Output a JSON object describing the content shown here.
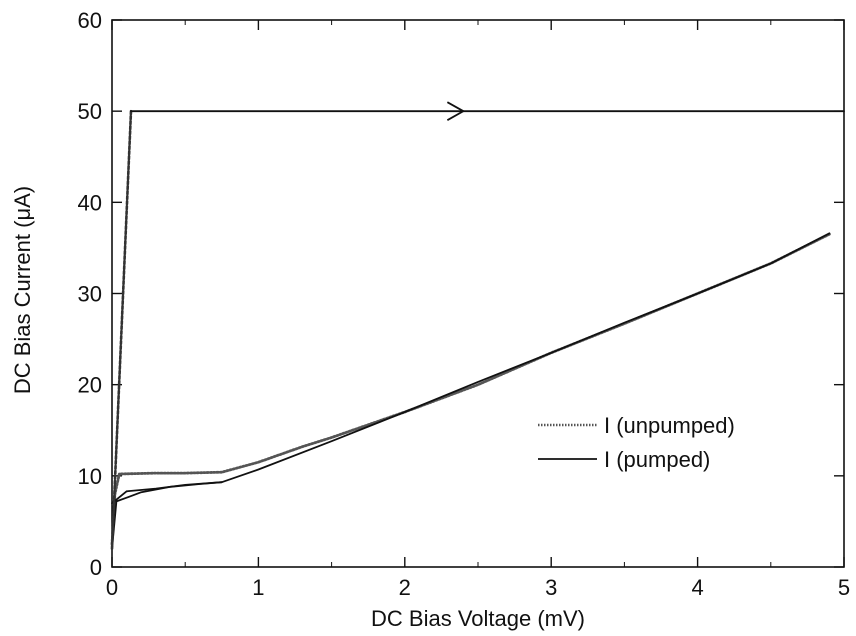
{
  "chart_data": {
    "type": "line",
    "xlabel": "DC Bias Voltage (mV)",
    "ylabel": "DC Bias Current (μA)",
    "xlim": [
      0,
      5
    ],
    "ylim": [
      0,
      60
    ],
    "x_ticks": [
      0,
      1,
      2,
      3,
      4,
      5
    ],
    "y_ticks": [
      0,
      10,
      20,
      30,
      40,
      50,
      60
    ],
    "grid": false,
    "legend_position": "right",
    "legend_entries": [
      "I  (unpumped)",
      "I  (pumped)"
    ],
    "series": [
      {
        "name": "I  (unpumped)",
        "style": "dotted",
        "points": [
          [
            0.0,
            2.5
          ],
          [
            0.02,
            8.0
          ],
          [
            0.05,
            10.2
          ],
          [
            0.3,
            10.3
          ],
          [
            0.5,
            10.3
          ],
          [
            0.75,
            10.4
          ],
          [
            1.0,
            11.5
          ],
          [
            1.3,
            13.2
          ],
          [
            1.5,
            14.2
          ],
          [
            2.0,
            17.0
          ],
          [
            2.5,
            20.0
          ],
          [
            3.0,
            23.5
          ],
          [
            3.5,
            26.7
          ],
          [
            4.0,
            30.0
          ],
          [
            4.5,
            33.3
          ],
          [
            4.9,
            36.5
          ]
        ]
      },
      {
        "name": "I  (pumped)",
        "style": "solid",
        "points": [
          [
            0.0,
            2.0
          ],
          [
            0.03,
            7.2
          ],
          [
            0.1,
            7.6
          ],
          [
            0.2,
            8.2
          ],
          [
            0.4,
            8.8
          ],
          [
            0.6,
            9.1
          ],
          [
            0.75,
            9.3
          ],
          [
            1.0,
            10.7
          ],
          [
            1.5,
            13.8
          ],
          [
            2.0,
            17.0
          ],
          [
            2.5,
            20.3
          ],
          [
            3.0,
            23.5
          ],
          [
            3.5,
            26.8
          ],
          [
            4.0,
            30.0
          ],
          [
            4.5,
            33.3
          ],
          [
            4.9,
            36.6
          ]
        ]
      },
      {
        "name": "",
        "style": "solid",
        "points": [
          [
            0.0,
            7.0
          ],
          [
            0.1,
            8.3
          ],
          [
            0.3,
            8.6
          ],
          [
            0.5,
            9.0
          ],
          [
            0.75,
            9.3
          ]
        ]
      },
      {
        "name": "",
        "style": "dashed",
        "points": [
          [
            0.0,
            2.0
          ],
          [
            0.13,
            50.0
          ]
        ]
      },
      {
        "name": "",
        "style": "solid",
        "points": [
          [
            0.13,
            50.0
          ],
          [
            5.0,
            50.0
          ]
        ]
      }
    ],
    "annotations": [
      {
        "type": "arrow",
        "direction": "right",
        "x": 2.4,
        "y": 50.0
      }
    ]
  }
}
